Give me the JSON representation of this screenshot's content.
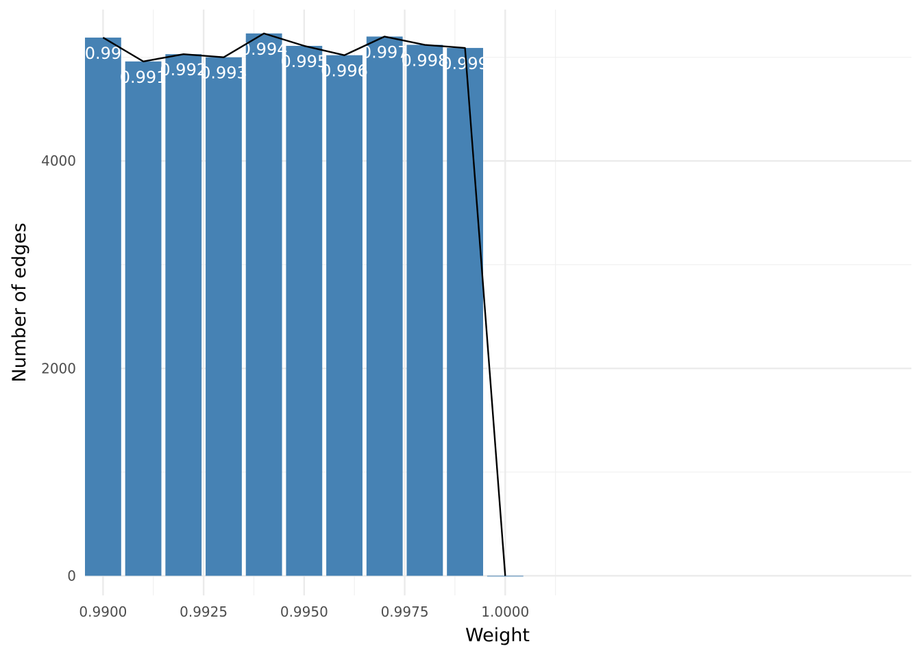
{
  "chart_data": {
    "type": "bar",
    "title": "",
    "xlabel": "Weight",
    "ylabel": "Number of edges",
    "xlim": [
      0.98955,
      1.0101
    ],
    "ylim": [
      -189,
      5460
    ],
    "x_ticks": [
      0.99,
      0.9925,
      0.995,
      0.9975,
      1.0
    ],
    "x_tick_labels": [
      "0.9900",
      "0.9925",
      "0.9950",
      "0.9975",
      "1.0000"
    ],
    "x_minor_ticks": [
      0.99125,
      0.99375,
      0.99625,
      0.99875,
      1.00125
    ],
    "y_ticks": [
      0,
      2000,
      4000
    ],
    "y_tick_labels": [
      "0",
      "2000",
      "4000"
    ],
    "y_minor_ticks": [
      1000,
      3000,
      5000
    ],
    "bar_width": 0.0009,
    "grid": true,
    "legend": "none",
    "bar_color": "#4682B4",
    "line_color": "#000000",
    "series": [
      {
        "x": [
          0.99,
          0.991,
          0.992,
          0.993,
          0.994,
          0.995,
          0.996,
          0.997,
          0.998,
          0.999,
          1.0
        ],
        "values": [
          5190,
          4960,
          5030,
          5000,
          5230,
          5110,
          5020,
          5200,
          5120,
          5090,
          0
        ],
        "labels": [
          "0.99",
          "0.991",
          "0.992",
          "0.993",
          "0.994",
          "0.995",
          "0.996",
          "0.997",
          "0.998",
          "0.999",
          ""
        ]
      }
    ]
  }
}
